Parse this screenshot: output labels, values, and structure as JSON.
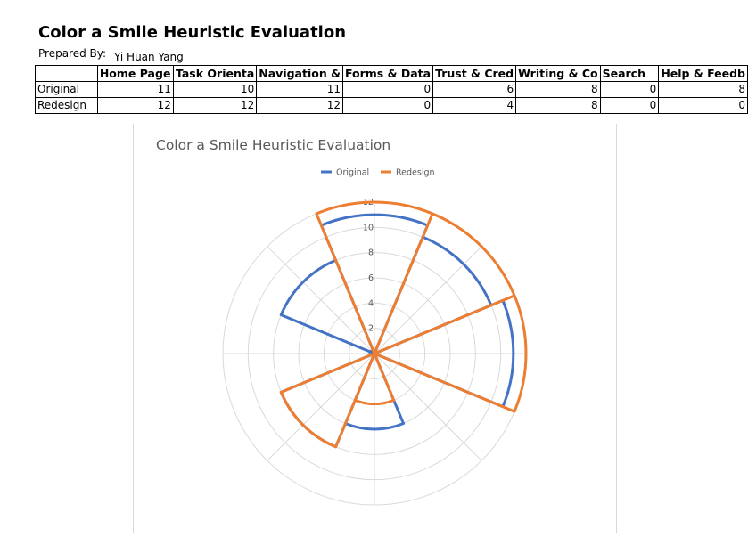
{
  "sheet": {
    "title": "Color a Smile Heuristic Evaluation",
    "prepared_by_label": "Prepared By:",
    "prepared_by_name": "Yi Huan Yang",
    "headers": [
      "Home Page",
      "Task Orienta",
      "Navigation &",
      "Forms & Data",
      "Trust & Cred",
      "Writing & Co",
      "Search",
      "Help & Feedb"
    ],
    "rows": [
      {
        "label": "Original",
        "values": [
          11,
          10,
          11,
          0,
          6,
          8,
          0,
          8
        ]
      },
      {
        "label": "Redesign",
        "values": [
          12,
          12,
          12,
          0,
          4,
          8,
          0,
          0
        ]
      }
    ]
  },
  "chart_data": {
    "type": "filled-radar",
    "title": "Color a Smile Heuristic Evaluation",
    "categories": [
      "Home Page",
      "Task Orientation",
      "Navigation",
      "Forms & Data",
      "Trust & Credibility",
      "Writing & Content",
      "Search",
      "Help & Feedback"
    ],
    "series": [
      {
        "name": "Original",
        "values": [
          11,
          10,
          11,
          0,
          6,
          8,
          0,
          8
        ],
        "color": "#4472C4"
      },
      {
        "name": "Redesign",
        "values": [
          12,
          12,
          12,
          0,
          4,
          8,
          0,
          0
        ],
        "color": "#ED7D31"
      }
    ],
    "rlim": [
      0,
      12
    ],
    "ticks": [
      "0",
      "2",
      "4",
      "6",
      "8",
      "10",
      "12"
    ],
    "legend_position": "top",
    "grid": true,
    "grid_color": "#d9d9d9"
  }
}
